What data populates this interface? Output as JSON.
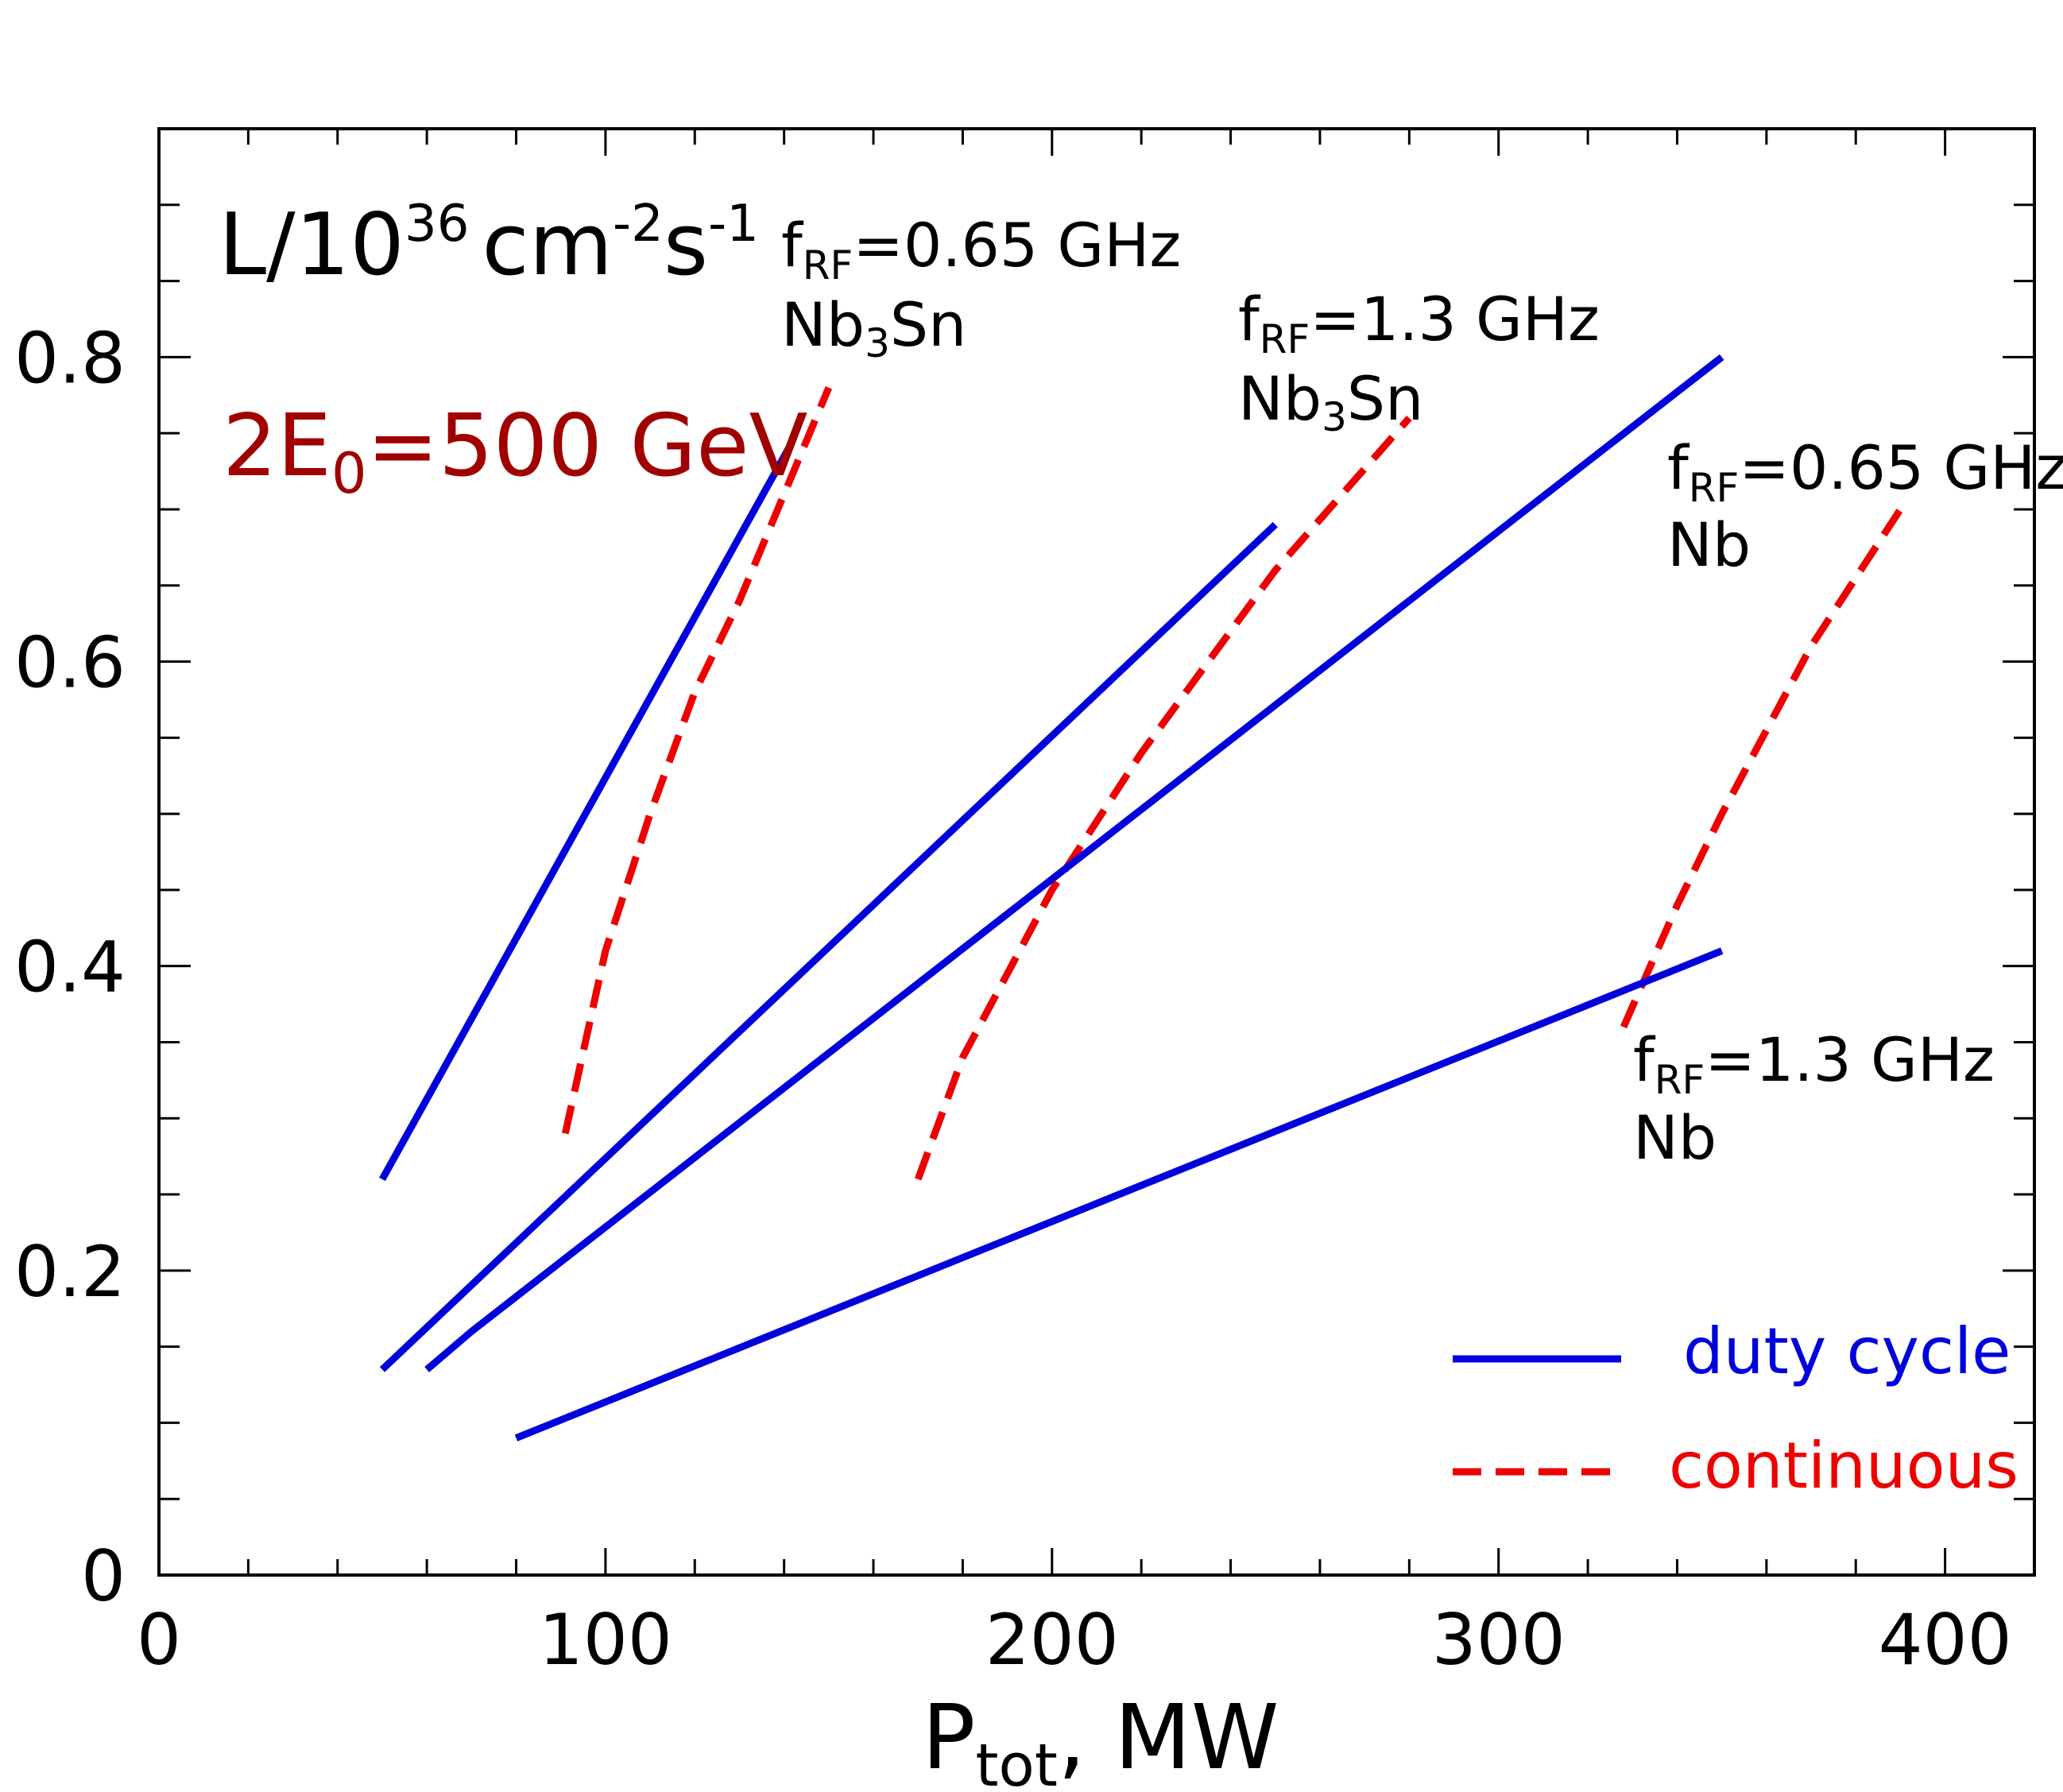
{
  "chart_data": {
    "type": "line",
    "title": "",
    "xlabel": "P",
    "xlabel_sub": "tot",
    "xlabel_rest": ", MW",
    "ylabel": "L/10³⁶ cm⁻²s⁻¹",
    "ylabel_parts": {
      "base": "L/10",
      "exp1": "36",
      "unit": "cm",
      "exp2": "-2",
      "unit2": "s",
      "exp3": "-1"
    },
    "xlim": [
      0,
      420
    ],
    "ylim": [
      0,
      0.95
    ],
    "xticks": [
      0,
      100,
      200,
      300,
      400
    ],
    "xtick_labels": [
      "0",
      "100",
      "200",
      "300",
      "400"
    ],
    "yticks": [
      0,
      0.2,
      0.4,
      0.6,
      0.8
    ],
    "ytick_labels": [
      "0",
      "0.2",
      "0.4",
      "0.6",
      "0.8"
    ],
    "energy_label": {
      "pre": "2E",
      "sub": "0",
      "post": "=500 GeV",
      "color": "#a00000"
    },
    "series": [
      {
        "name": "fRF=0.65 GHz Nb3Sn duty cycle",
        "style": "solid",
        "color": "#0000dd",
        "x": [
          50,
          141
        ],
        "y": [
          0.26,
          0.74
        ]
      },
      {
        "name": "fRF=0.65 GHz Nb3Sn continuous",
        "style": "dashed",
        "color": "#ee0000",
        "x": [
          91,
          100,
          110,
          120,
          130,
          140,
          150
        ],
        "y": [
          0.29,
          0.41,
          0.5,
          0.58,
          0.64,
          0.71,
          0.78
        ]
      },
      {
        "name": "fRF=1.3 GHz Nb3Sn duty cycle",
        "style": "solid",
        "color": "#0000dd",
        "x": [
          50,
          250
        ],
        "y": [
          0.135,
          0.69
        ]
      },
      {
        "name": "fRF=1.3 GHz Nb3Sn continuous",
        "style": "dashed",
        "color": "#ee0000",
        "x": [
          170,
          180,
          200,
          220,
          250,
          280
        ],
        "y": [
          0.26,
          0.34,
          0.45,
          0.54,
          0.66,
          0.76
        ]
      },
      {
        "name": "fRF=0.65 GHz Nb duty cycle",
        "style": "solid",
        "color": "#0000dd",
        "x": [
          60,
          70,
          350
        ],
        "y": [
          0.135,
          0.16,
          0.8
        ]
      },
      {
        "name": "fRF=0.65 GHz Nb continuous",
        "style": "dashed",
        "color": "#ee0000",
        "x": [
          328,
          340,
          350,
          370,
          390
        ],
        "y": [
          0.36,
          0.44,
          0.5,
          0.61,
          0.7
        ]
      },
      {
        "name": "fRF=1.3 GHz Nb duty cycle",
        "style": "solid",
        "color": "#0000dd",
        "x": [
          80,
          350
        ],
        "y": [
          0.09,
          0.41
        ]
      }
    ],
    "annotations": [
      {
        "pre": "f",
        "sub": "RF",
        "post": "=0.65 GHz",
        "line2_pre": "Nb",
        "line2_sub": "3",
        "line2_post": "Sn"
      },
      {
        "pre": "f",
        "sub": "RF",
        "post": "=1.3 GHz",
        "line2_pre": "Nb",
        "line2_sub": "3",
        "line2_post": "Sn"
      },
      {
        "pre": "f",
        "sub": "RF",
        "post": "=0.65 GHz",
        "line2_pre": "Nb",
        "line2_sub": "",
        "line2_post": ""
      },
      {
        "pre": "f",
        "sub": "RF",
        "post": "=1.3 GHz",
        "line2_pre": "Nb",
        "line2_sub": "",
        "line2_post": ""
      }
    ],
    "legend": {
      "placement": "bottom-right",
      "entries": [
        {
          "label": "duty cycle",
          "style": "solid",
          "color": "#0000dd"
        },
        {
          "label": "continuous",
          "style": "dashed",
          "color": "#ee0000"
        }
      ]
    }
  }
}
